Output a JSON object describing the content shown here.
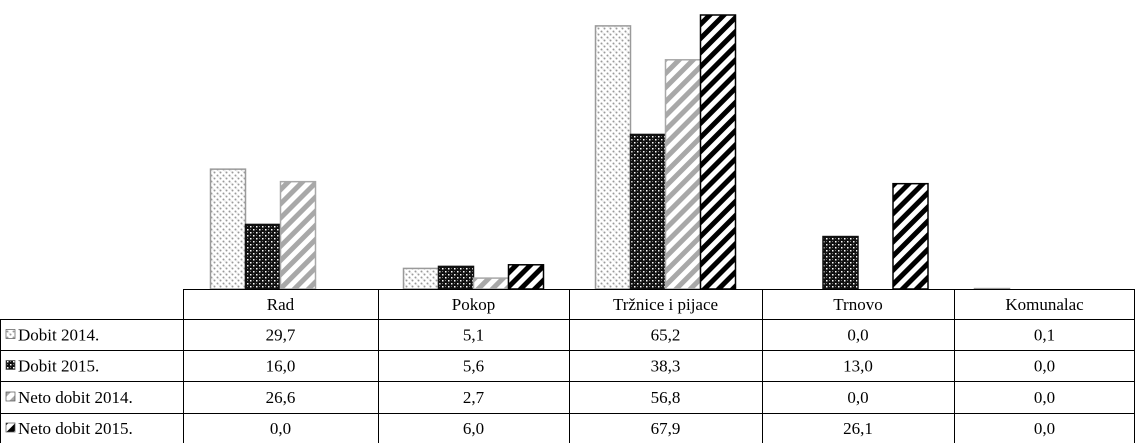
{
  "chart_data": {
    "type": "bar",
    "categories": [
      "Rad",
      "Pokop",
      "Tržnice i pijace",
      "Trnovo",
      "Komunalac"
    ],
    "series": [
      {
        "name": "Dobit 2014.",
        "values": [
          29.7,
          5.1,
          65.2,
          0.0,
          0.1
        ],
        "labels": [
          "29,7",
          "5,1",
          "65,2",
          "0,0",
          "0,1"
        ],
        "pattern": "dotted-light"
      },
      {
        "name": "Dobit 2015.",
        "values": [
          16.0,
          5.6,
          38.3,
          13.0,
          0.0
        ],
        "labels": [
          "16,0",
          "5,6",
          "38,3",
          "13,0",
          "0,0"
        ],
        "pattern": "checker-dark"
      },
      {
        "name": "Neto dobit 2014.",
        "values": [
          26.6,
          2.7,
          56.8,
          0.0,
          0.0
        ],
        "labels": [
          "26,6",
          "2,7",
          "56,8",
          "0,0",
          "0,0"
        ],
        "pattern": "diagonal-gray"
      },
      {
        "name": "Neto dobit 2015.",
        "values": [
          0.0,
          6.0,
          67.9,
          26.1,
          0.0
        ],
        "labels": [
          "0,0",
          "6,0",
          "67,9",
          "26,1",
          "0,0"
        ],
        "pattern": "diagonal-black"
      }
    ],
    "ylim": [
      0,
      67.9
    ],
    "grid": false,
    "legend": "data-table-left",
    "title": "",
    "xlabel": "",
    "ylabel": ""
  },
  "colors": {
    "dotted-light": "#9a9a9a",
    "checker-dark": "#111111",
    "diagonal-gray": "#a8a8a8",
    "diagonal-black": "#000000",
    "table-border": "#000000"
  }
}
